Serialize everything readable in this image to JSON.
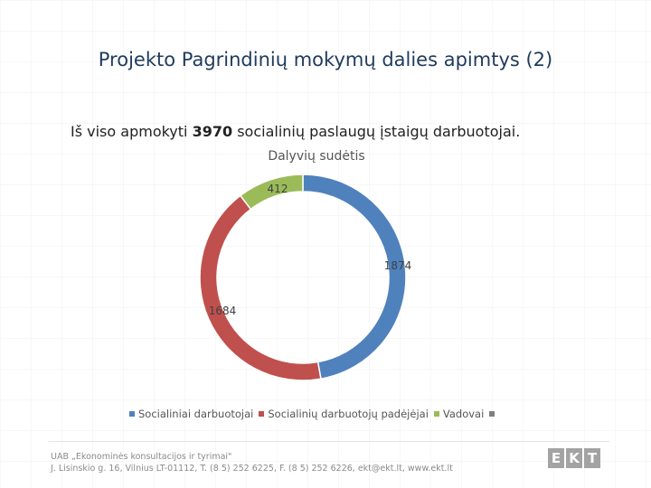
{
  "slide": {
    "title": "Projekto Pagrindinių mokymų dalies apimtys (2)",
    "lead_prefix": "Iš viso apmokyti ",
    "lead_number": "3970",
    "lead_suffix": " socialinių paslaugų įstaigų darbuotojai."
  },
  "chart_data": {
    "type": "pie",
    "variant": "donut",
    "title": "Dalyvių sudėtis",
    "legend_position": "bottom",
    "series": [
      {
        "name": "Socialiniai darbuotojai",
        "value": 1874,
        "label": "1874",
        "color": "#4f81bd"
      },
      {
        "name": "Socialinių darbuotojų padėjėjai",
        "value": 1684,
        "label": "1684",
        "color": "#c0504d"
      },
      {
        "name": "Vadovai",
        "value": 412,
        "label": "412",
        "color": "#9bbb59"
      }
    ]
  },
  "footer": {
    "line1": "UAB „Ekonominės konsultacijos ir tyrimai\"",
    "line2": "J. Lisinskio g. 16, Vilnius LT-01112, T. (8 5) 252 6225, F. (8 5) 252 6226, ekt@ekt.lt, www.ekt.lt",
    "logo_letters": [
      "E",
      "K",
      "T"
    ]
  }
}
